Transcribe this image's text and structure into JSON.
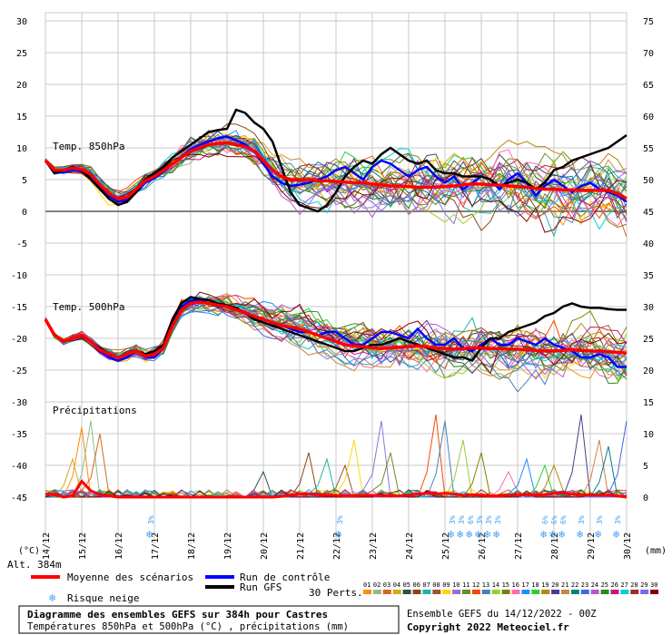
{
  "chart_data": {
    "type": "line",
    "title": "Diagramme des ensembles GEFS sur 384h pour Castres",
    "subtitle": "Températures 850hPa et 500hPa (°C) , précipitations (mm)",
    "run_label": "Ensemble GEFS du 14/12/2022 - 00Z",
    "copyright": "Copyright 2022 Meteociel.fr",
    "altitude_label": "Alt. 384m",
    "left_axis_unit": "(°C)",
    "right_axis_unit": "(mm)",
    "left_ticks": [
      30,
      25,
      20,
      15,
      10,
      5,
      0,
      -5,
      -10,
      -15,
      -20,
      -25,
      -30,
      -35,
      -40,
      -45
    ],
    "right_ticks": [
      75,
      70,
      65,
      60,
      55,
      50,
      45,
      40,
      35,
      30,
      25,
      20,
      15,
      10,
      5,
      0
    ],
    "ylim": [
      -45,
      30
    ],
    "x_labels": [
      "14/12",
      "15/12",
      "16/12",
      "17/12",
      "18/12",
      "19/12",
      "20/12",
      "21/12",
      "22/12",
      "23/12",
      "24/12",
      "25/12",
      "26/12",
      "27/12",
      "28/12",
      "29/12",
      "30/12"
    ],
    "panel_labels": {
      "t850": "Temp. 850hPa",
      "t500": "Temp. 500hPa",
      "precip": "Précipitations"
    },
    "steps_per_day": 4,
    "t850": {
      "mean": [
        8,
        6.5,
        6.5,
        6.8,
        6.6,
        5.8,
        4.2,
        2.8,
        2.0,
        2.2,
        3.5,
        4.8,
        5.5,
        6.5,
        7.5,
        8.5,
        9.5,
        10,
        10.5,
        10.7,
        10.8,
        10.5,
        10.2,
        9.5,
        8,
        6.5,
        5.5,
        5,
        5,
        5,
        4.8,
        4.8,
        4.7,
        4.6,
        4.5,
        4.5,
        4.3,
        4.2,
        4.0,
        4.0,
        3.9,
        3.8,
        3.8,
        3.8,
        3.9,
        4.0,
        4.2,
        4.3,
        4.3,
        4.2,
        4.1,
        4.0,
        3.9,
        3.8,
        3.6,
        3.5,
        3.5,
        3.4,
        3.4,
        3.3,
        3.3,
        3.3,
        3.3,
        2.8,
        2.0
      ],
      "control": [
        8,
        6,
        6.2,
        6.5,
        6.3,
        5.5,
        4,
        2.5,
        1.5,
        1.8,
        3,
        4.5,
        5.2,
        6.3,
        7.5,
        8.6,
        9.8,
        10.5,
        11,
        11.5,
        11.8,
        11.2,
        10.5,
        9.5,
        7.5,
        5.5,
        4.5,
        4,
        4.2,
        4.5,
        5,
        5.5,
        6.5,
        7,
        6,
        5,
        7,
        8,
        7.5,
        6.5,
        5.5,
        6.5,
        7,
        5.5,
        4.5,
        5.5,
        3.5,
        4.5,
        5.5,
        5,
        3.5,
        5,
        6,
        4.5,
        2.5,
        4,
        5,
        4,
        3,
        4,
        4.5,
        3.5,
        3,
        2.5,
        1.5
      ],
      "gfs": [
        8,
        6,
        6.5,
        7,
        6.5,
        5,
        3.5,
        2,
        1,
        1.5,
        3,
        5,
        6,
        7,
        8.5,
        9.5,
        10.5,
        11.5,
        12.5,
        12.8,
        13,
        16,
        15.5,
        14,
        13,
        11,
        7,
        3,
        1,
        0.5,
        0,
        1,
        3,
        5.5,
        7,
        8,
        7.5,
        9,
        10,
        9,
        8,
        7.5,
        8,
        6.5,
        6,
        6,
        5.5,
        5.5,
        5.5,
        5,
        4,
        4.5,
        5,
        4.5,
        3.5,
        4.5,
        6.5,
        7,
        8,
        8.5,
        9,
        9.5,
        10,
        11,
        12
      ],
      "spread": [
        0.6,
        0.6,
        0.8,
        1.0,
        1.1,
        1.3,
        1.3,
        1.4,
        1.4,
        1.5,
        1.6,
        1.7,
        1.8,
        1.9,
        2.0,
        2.1,
        2.2,
        2.3,
        2.4,
        2.5,
        2.6,
        2.7,
        2.8,
        2.9,
        3.0,
        3.2,
        3.4,
        3.5,
        3.6,
        3.7,
        3.8,
        3.9,
        4.0,
        4.1,
        4.2,
        4.3,
        4.4,
        4.5,
        4.6,
        4.7,
        4.8,
        4.8,
        4.9,
        5.0,
        5.0,
        5.0,
        5.1,
        5.1,
        5.2,
        5.2,
        5.2,
        5.3,
        5.3,
        5.3,
        5.3,
        5.4,
        5.4,
        5.4,
        5.4,
        5.4,
        5.4,
        5.4,
        5.4,
        5.5,
        5.5
      ]
    },
    "t500": {
      "mean": [
        -17,
        -19.5,
        -20.5,
        -20,
        -19.5,
        -20.5,
        -21.8,
        -22.5,
        -23,
        -22.5,
        -22,
        -22.8,
        -22.5,
        -21.5,
        -18,
        -15.5,
        -14.5,
        -14.3,
        -14.5,
        -14.8,
        -15,
        -15.5,
        -16,
        -16.5,
        -17,
        -17.5,
        -18,
        -18.2,
        -18.5,
        -19,
        -19.5,
        -20,
        -20.5,
        -21,
        -21.2,
        -21.3,
        -21.5,
        -21.6,
        -21.5,
        -21.4,
        -21.3,
        -21.2,
        -21.3,
        -21.5,
        -21.6,
        -21.7,
        -21.6,
        -21.5,
        -21.5,
        -21.6,
        -21.6,
        -21.7,
        -21.7,
        -21.8,
        -21.9,
        -22,
        -22,
        -21.9,
        -21.8,
        -21.9,
        -22,
        -22,
        -22.1,
        -22.2,
        -22.3
      ],
      "control": [
        -17,
        -19.5,
        -20.5,
        -20,
        -19.5,
        -20.5,
        -22,
        -23,
        -23.5,
        -23,
        -22,
        -23,
        -23,
        -21.5,
        -17.5,
        -15,
        -14,
        -14,
        -14.5,
        -15,
        -15,
        -15.2,
        -16,
        -17,
        -17.5,
        -18,
        -18,
        -18.5,
        -19,
        -19,
        -19.5,
        -19,
        -19,
        -20,
        -21,
        -21,
        -20,
        -19,
        -19,
        -19.5,
        -20,
        -18.5,
        -20,
        -21,
        -21,
        -20,
        -21.5,
        -22,
        -21,
        -20,
        -21,
        -21,
        -20,
        -20.5,
        -21,
        -20,
        -21,
        -21.5,
        -22,
        -23,
        -23,
        -22.5,
        -23,
        -24.5,
        -24.5
      ],
      "gfs": [
        -17,
        -19.5,
        -20.5,
        -20,
        -19.5,
        -20.5,
        -21.5,
        -22.5,
        -23,
        -22.5,
        -22,
        -22.5,
        -22,
        -21,
        -17,
        -14.5,
        -13.5,
        -13.8,
        -14,
        -14.5,
        -14.8,
        -15.2,
        -16,
        -17,
        -17.5,
        -18,
        -18.5,
        -19,
        -19.5,
        -20,
        -20.5,
        -21,
        -21.5,
        -22,
        -22,
        -21.5,
        -21,
        -21,
        -20.5,
        -20,
        -20.5,
        -21,
        -21.5,
        -22,
        -22.5,
        -23,
        -23,
        -23.5,
        -21.5,
        -20,
        -20,
        -19,
        -18.5,
        -18,
        -17.5,
        -16.5,
        -16,
        -15,
        -14.5,
        -15,
        -15.2,
        -15.2,
        -15.4,
        -15.5,
        -15.5
      ],
      "spread": [
        0.6,
        0.6,
        0.7,
        0.8,
        0.9,
        1.0,
        1.0,
        1.1,
        1.1,
        1.2,
        1.2,
        1.3,
        1.4,
        1.5,
        1.6,
        1.7,
        1.8,
        1.9,
        2.0,
        2.1,
        2.2,
        2.3,
        2.4,
        2.5,
        2.6,
        2.7,
        2.8,
        2.9,
        3.0,
        3.1,
        3.2,
        3.3,
        3.4,
        3.5,
        3.6,
        3.7,
        3.8,
        3.9,
        4.0,
        4.0,
        4.1,
        4.1,
        4.2,
        4.2,
        4.3,
        4.3,
        4.3,
        4.4,
        4.4,
        4.4,
        4.4,
        4.5,
        4.5,
        4.5,
        4.5,
        4.5,
        4.5,
        4.6,
        4.6,
        4.6,
        4.6,
        4.6,
        4.6,
        4.6,
        4.6
      ]
    },
    "precip": {
      "mean": [
        0.5,
        0.4,
        0,
        0.2,
        2.5,
        1,
        0.4,
        0.2,
        0,
        0,
        0,
        0,
        0,
        0,
        0,
        0,
        0,
        0,
        0,
        0,
        0,
        0,
        0,
        0,
        0,
        0,
        0.1,
        0.3,
        0.5,
        0.5,
        0.4,
        0.3,
        0.3,
        0.2,
        0.2,
        0.3,
        0.3,
        0.2,
        0.2,
        0.2,
        0.3,
        0.5,
        0.6,
        0.5,
        0.6,
        0.5,
        0.3,
        0.4,
        0.3,
        0.2,
        0.2,
        0.3,
        0.4,
        0.4,
        0.3,
        0.4,
        0.6,
        0.7,
        0.5,
        0.4,
        0.3,
        0.3,
        0.3,
        0.2,
        0
      ],
      "peaks": [
        [
          4,
          11
        ],
        [
          5,
          12
        ],
        [
          6,
          10
        ],
        [
          3,
          6
        ],
        [
          24,
          4
        ],
        [
          29,
          7
        ],
        [
          31,
          6
        ],
        [
          33,
          5
        ],
        [
          34,
          9
        ],
        [
          37,
          12
        ],
        [
          38,
          7
        ],
        [
          43,
          13
        ],
        [
          44,
          12
        ],
        [
          46,
          9
        ],
        [
          48,
          7
        ],
        [
          51,
          4
        ],
        [
          53,
          6
        ],
        [
          55,
          5
        ],
        [
          56,
          5
        ],
        [
          59,
          13
        ],
        [
          61,
          9
        ],
        [
          62,
          8
        ],
        [
          64,
          12
        ],
        [
          66,
          4
        ],
        [
          68,
          10
        ],
        [
          70,
          4
        ],
        [
          72,
          6
        ],
        [
          74,
          4
        ],
        [
          76,
          3
        ],
        [
          78,
          6
        ],
        [
          80,
          3
        ]
      ]
    },
    "snow_risk": {
      "label": "Risque neige",
      "markers": [
        {
          "day": 2.9,
          "pct": "3%"
        },
        {
          "day": 8.1,
          "pct": "3%"
        },
        {
          "day": 11.2,
          "pct": "3%"
        },
        {
          "day": 11.45,
          "pct": "3%"
        },
        {
          "day": 11.7,
          "pct": "6%"
        },
        {
          "day": 11.95,
          "pct": "3%"
        },
        {
          "day": 12.2,
          "pct": "3%"
        },
        {
          "day": 12.45,
          "pct": "3%"
        },
        {
          "day": 13.75,
          "pct": "6%"
        },
        {
          "day": 14.0,
          "pct": "6%"
        },
        {
          "day": 14.25,
          "pct": "6%"
        },
        {
          "day": 14.75,
          "pct": "3%"
        },
        {
          "day": 15.25,
          "pct": "3%"
        },
        {
          "day": 15.75,
          "pct": "3%"
        }
      ]
    },
    "legend": {
      "mean": "Moyenne des scénarios",
      "control": "Run de contrôle",
      "gfs": "Run GFS",
      "snow": "Risque neige",
      "perts_label": "30 Perts.",
      "pert_numbers": [
        "01",
        "02",
        "03",
        "04",
        "05",
        "06",
        "07",
        "08",
        "09",
        "10",
        "11",
        "12",
        "13",
        "14",
        "15",
        "16",
        "17",
        "18",
        "19",
        "20",
        "21",
        "22",
        "23",
        "24",
        "25",
        "26",
        "27",
        "28",
        "29",
        "30"
      ]
    },
    "colors": {
      "mean": "#ff0000",
      "control": "#0000ff",
      "gfs": "#000000",
      "grid": "#c8c8c8",
      "zero_line": "#808080",
      "snow": "#46a0f0",
      "perts": [
        "#ff8c00",
        "#8fbc8f",
        "#d2691e",
        "#daa520",
        "#2f4f4f",
        "#8b4513",
        "#20b2aa",
        "#a0522d",
        "#ffd700",
        "#9370db",
        "#6b8e23",
        "#ff4500",
        "#4682b4",
        "#9acd32",
        "#808000",
        "#ff69b4",
        "#1e90ff",
        "#32cd32",
        "#b8860b",
        "#483d8b",
        "#cd853f",
        "#008080",
        "#4169e1",
        "#ba55d3",
        "#228b22",
        "#c71585",
        "#00ced1",
        "#a52a2a",
        "#7b68ee",
        "#800000"
      ]
    }
  }
}
